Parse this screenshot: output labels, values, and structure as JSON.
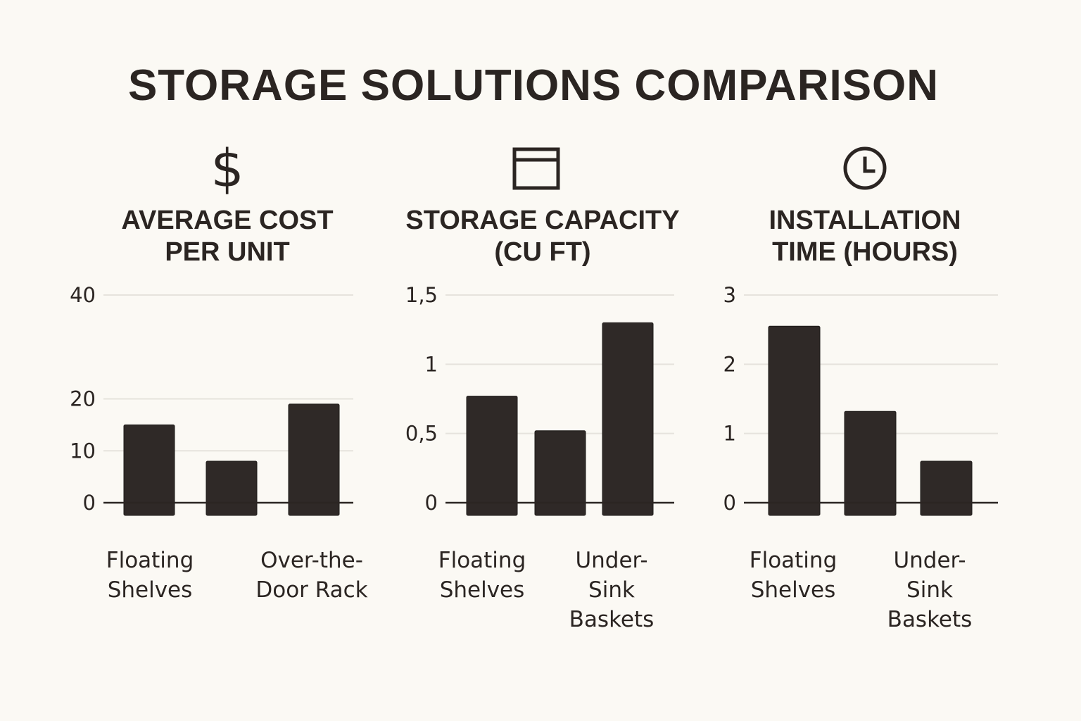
{
  "title": "STORAGE SOLUTIONS COMPARISON",
  "colors": {
    "background": "#fbf9f4",
    "bar": "#2f2927",
    "text": "#2b2522",
    "grid": "#e6e3dd"
  },
  "chart_data": [
    {
      "type": "bar",
      "icon": "dollar-icon",
      "title_lines": [
        "AVERAGE COST",
        "PER UNIT"
      ],
      "ylim": [
        0,
        40
      ],
      "ticks": [
        {
          "value": 0,
          "label": "0"
        },
        {
          "value": 10,
          "label": "10"
        },
        {
          "value": 20,
          "label": "20"
        },
        {
          "value": 40,
          "label": "40"
        }
      ],
      "categories": [
        "Floating Shelves",
        "",
        "Over-the-Door Rack"
      ],
      "category_label_lines": [
        [
          "Floating",
          "Shelves"
        ],
        [],
        [
          "Over-the-",
          "Door Rack"
        ]
      ],
      "values": [
        15,
        8,
        19
      ],
      "grid": true
    },
    {
      "type": "bar",
      "icon": "storage-box-icon",
      "title_lines": [
        "STORAGE CAPACITY",
        "(CU FT)"
      ],
      "ylim": [
        0,
        1.5
      ],
      "ticks": [
        {
          "value": 0,
          "label": "0"
        },
        {
          "value": 0.5,
          "label": "0,5"
        },
        {
          "value": 1,
          "label": "1"
        },
        {
          "value": 1.5,
          "label": "1,5"
        }
      ],
      "categories": [
        "Floating Shelves",
        "",
        "Under-Sink Baskets"
      ],
      "category_label_lines": [
        [
          "Floating",
          "Shelves"
        ],
        [],
        [
          "Under-",
          "Sink",
          "Baskets"
        ]
      ],
      "values": [
        0.77,
        0.52,
        1.3
      ],
      "grid": true
    },
    {
      "type": "bar",
      "icon": "clock-icon",
      "title_lines": [
        "INSTALLATION",
        "TIME (HOURS)"
      ],
      "ylim": [
        0,
        3
      ],
      "ticks": [
        {
          "value": 0,
          "label": "0"
        },
        {
          "value": 1,
          "label": "1"
        },
        {
          "value": 2,
          "label": "2"
        },
        {
          "value": 3,
          "label": "3"
        }
      ],
      "categories": [
        "Floating Shelves",
        "",
        "Under-Sink Baskets"
      ],
      "category_label_lines": [
        [
          "Floating",
          "Shelves"
        ],
        [],
        [
          "Under-",
          "Sink",
          "Baskets"
        ]
      ],
      "values": [
        2.55,
        1.32,
        0.6
      ],
      "grid": true
    }
  ]
}
